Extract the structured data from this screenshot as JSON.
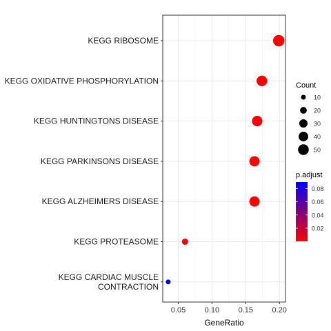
{
  "chart_data": {
    "type": "scatter",
    "title": "",
    "xlabel": "GeneRatio",
    "ylabel": "",
    "xlim": [
      0.027,
      0.209
    ],
    "xticks": [
      0.05,
      0.1,
      0.15,
      0.2
    ],
    "xtick_labels": [
      "0.05",
      "0.10",
      "0.15",
      "0.20"
    ],
    "grid": true,
    "legend_position": "right",
    "categories": [
      [
        "KEGG RIBOSOME"
      ],
      [
        "KEGG OXIDATIVE PHOSPHORYLATION"
      ],
      [
        "KEGG HUNTINGTONS DISEASE"
      ],
      [
        "KEGG PARKINSONS DISEASE"
      ],
      [
        "KEGG ALZHEIMERS DISEASE"
      ],
      [
        "KEGG PROTEASOME"
      ],
      [
        "KEGG CARDIAC MUSCLE",
        "CONTRACTION"
      ]
    ],
    "points": [
      {
        "x": 0.199,
        "count": 56,
        "p_adjust": 0.0
      },
      {
        "x": 0.174,
        "count": 49,
        "p_adjust": 0.0
      },
      {
        "x": 0.167,
        "count": 47,
        "p_adjust": 0.0
      },
      {
        "x": 0.163,
        "count": 46,
        "p_adjust": 0.0
      },
      {
        "x": 0.163,
        "count": 46,
        "p_adjust": 0.0
      },
      {
        "x": 0.06,
        "count": 17,
        "p_adjust": 0.003
      },
      {
        "x": 0.035,
        "count": 10,
        "p_adjust": 0.09
      }
    ],
    "size_legend": {
      "title": "Count",
      "values": [
        10,
        20,
        30,
        40,
        50
      ],
      "labels": [
        "10",
        "20",
        "30",
        "40",
        "50"
      ]
    },
    "color_legend": {
      "title": "p.adjust",
      "range": [
        0.0,
        0.09
      ],
      "breaks": [
        0.02,
        0.04,
        0.06,
        0.08
      ],
      "labels": [
        "0.02",
        "0.04",
        "0.06",
        "0.08"
      ],
      "low_color": "#FF0000",
      "high_color": "#0000FF"
    }
  }
}
